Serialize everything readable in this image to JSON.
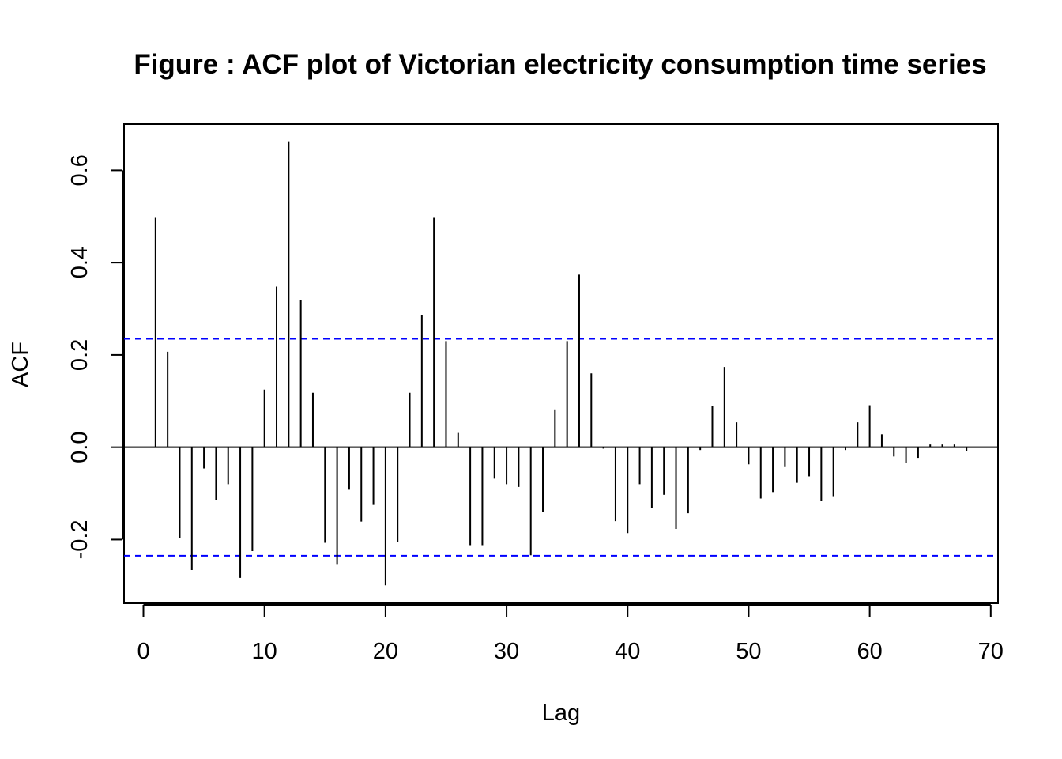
{
  "chart_data": {
    "type": "bar",
    "title": "Figure : ACF plot of Victorian electricity consumption time series",
    "xlabel": "Lag",
    "ylabel": "ACF",
    "xlim": [
      -1.6,
      70.6
    ],
    "ylim": [
      -0.338,
      0.7
    ],
    "x_ticks": [
      0,
      10,
      20,
      30,
      40,
      50,
      60,
      70
    ],
    "y_ticks": [
      -0.2,
      0.0,
      0.2,
      0.4,
      0.6
    ],
    "x_tick_labels": [
      "0",
      "10",
      "20",
      "30",
      "40",
      "50",
      "60",
      "70"
    ],
    "y_tick_labels": [
      "-0.2",
      "0.0",
      "0.2",
      "0.4",
      "0.6"
    ],
    "confidence_bounds": [
      0.235,
      -0.235
    ],
    "confidence_color": "#0000ff",
    "bar_color": "#000000",
    "grid": false,
    "lags": [
      1,
      2,
      3,
      4,
      5,
      6,
      7,
      8,
      9,
      10,
      11,
      12,
      13,
      14,
      15,
      16,
      17,
      18,
      19,
      20,
      21,
      22,
      23,
      24,
      25,
      26,
      27,
      28,
      29,
      30,
      31,
      32,
      33,
      34,
      35,
      36,
      37,
      38,
      39,
      40,
      41,
      42,
      43,
      44,
      45,
      46,
      47,
      48,
      49,
      50,
      51,
      52,
      53,
      54,
      55,
      56,
      57,
      58,
      59,
      60,
      61,
      62,
      63,
      64,
      65,
      66,
      67,
      68
    ],
    "values": [
      0.497,
      0.207,
      -0.197,
      -0.266,
      -0.046,
      -0.115,
      -0.08,
      -0.283,
      -0.225,
      0.125,
      0.348,
      0.663,
      0.319,
      0.118,
      -0.207,
      -0.253,
      -0.092,
      -0.161,
      -0.125,
      -0.299,
      -0.206,
      0.118,
      0.286,
      0.497,
      0.23,
      0.031,
      -0.212,
      -0.212,
      -0.068,
      -0.08,
      -0.086,
      -0.234,
      -0.14,
      0.082,
      0.23,
      0.374,
      0.16,
      -0.003,
      -0.16,
      -0.186,
      -0.08,
      -0.131,
      -0.103,
      -0.177,
      -0.143,
      -0.006,
      0.089,
      0.174,
      0.054,
      -0.037,
      -0.111,
      -0.097,
      -0.043,
      -0.077,
      -0.063,
      -0.117,
      -0.106,
      -0.006,
      0.054,
      0.091,
      0.028,
      -0.02,
      -0.034,
      -0.023,
      0.006,
      0.006,
      0.006,
      -0.009
    ]
  }
}
